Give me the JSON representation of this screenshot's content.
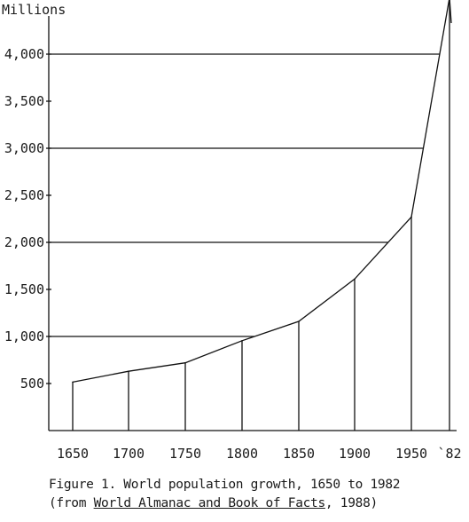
{
  "chart_data": {
    "type": "line",
    "ylabel": "Millions",
    "xlabel": "",
    "title": "",
    "x": [
      "1650",
      "1700",
      "1750",
      "1800",
      "1850",
      "1900",
      "1950",
      "`82"
    ],
    "values": [
      515,
      630,
      720,
      955,
      1160,
      1610,
      2270,
      4600
    ],
    "yticks": [
      500,
      1000,
      1500,
      2000,
      2500,
      3000,
      3500,
      4000
    ],
    "ytick_labels": [
      "500",
      "1,000",
      "1,500",
      "2,000",
      "2,500",
      "3,000",
      "3,500",
      "4,000"
    ],
    "gridlines_at": [
      1000,
      2000,
      3000,
      4000
    ],
    "ylim": [
      0,
      4600
    ],
    "grid": true,
    "legend": "none"
  },
  "caption": {
    "line1": "Figure 1.  World population growth, 1650 to 1982",
    "line2_prefix": "(from ",
    "line2_source": "World Almanac and Book of Facts",
    "line2_suffix": ", 1988)"
  }
}
